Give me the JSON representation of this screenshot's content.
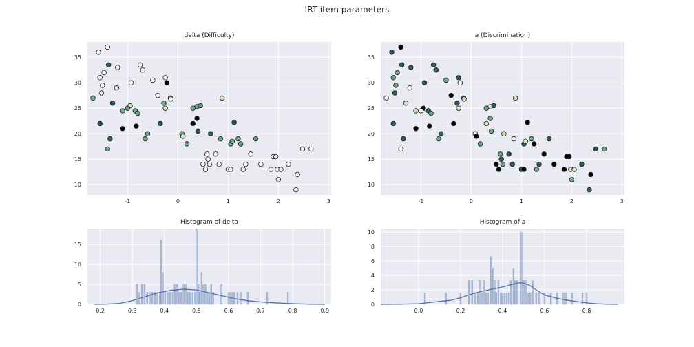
{
  "figure": {
    "title": "IRT item parameters"
  },
  "palette": [
    "#f7fbf5",
    "#cfe5c1",
    "#6aa889",
    "#2f5a60",
    "#08080c"
  ],
  "chart_data": [
    {
      "id": "scatter_delta",
      "type": "scatter",
      "title": "delta (Difficulty)",
      "xlim": [
        -1.8,
        3.05
      ],
      "ylim": [
        8,
        38
      ],
      "xticks": [
        -1,
        0,
        1,
        2,
        3
      ],
      "yticks": [
        10,
        15,
        20,
        25,
        30,
        35
      ],
      "grid": true,
      "points": [
        [
          -1.58,
          36,
          0
        ],
        [
          -1.4,
          37,
          0
        ],
        [
          -1.55,
          31,
          0
        ],
        [
          -1.5,
          29.5,
          0
        ],
        [
          -1.47,
          32,
          0
        ],
        [
          -1.52,
          28,
          0
        ],
        [
          -1.69,
          27,
          2
        ],
        [
          -1.38,
          33.5,
          3
        ],
        [
          -1.2,
          33,
          0
        ],
        [
          -1.22,
          29,
          1
        ],
        [
          -0.93,
          30,
          0
        ],
        [
          -0.75,
          33.5,
          0
        ],
        [
          -0.7,
          32.5,
          0
        ],
        [
          -1.3,
          26,
          3
        ],
        [
          -0.95,
          25.5,
          1
        ],
        [
          -1.0,
          25,
          2
        ],
        [
          -1.1,
          24.5,
          2
        ],
        [
          -0.85,
          24.5,
          2
        ],
        [
          -0.8,
          24,
          2
        ],
        [
          -1.55,
          22,
          3
        ],
        [
          -1.1,
          21,
          4
        ],
        [
          -0.83,
          21.5,
          4
        ],
        [
          -1.35,
          19,
          3
        ],
        [
          -1.4,
          17,
          2
        ],
        [
          -0.6,
          20,
          2
        ],
        [
          -0.65,
          19,
          2
        ],
        [
          -0.4,
          27.5,
          0
        ],
        [
          -0.25,
          31,
          0
        ],
        [
          -0.22,
          30,
          4
        ],
        [
          -0.15,
          27,
          0
        ],
        [
          -0.14,
          26.8,
          0
        ],
        [
          -0.28,
          26,
          2
        ],
        [
          -0.25,
          25,
          1
        ],
        [
          -0.35,
          22,
          3
        ],
        [
          -0.5,
          30.5,
          0
        ],
        [
          0.08,
          20,
          2
        ],
        [
          0.1,
          19.5,
          1
        ],
        [
          0.18,
          18,
          2
        ],
        [
          0.3,
          25,
          2
        ],
        [
          0.38,
          25.3,
          2
        ],
        [
          0.45,
          25.5,
          2
        ],
        [
          0.88,
          27,
          1
        ],
        [
          0.3,
          22,
          4
        ],
        [
          0.38,
          23,
          4
        ],
        [
          0.4,
          20.5,
          3
        ],
        [
          0.65,
          20,
          3
        ],
        [
          0.85,
          19,
          2
        ],
        [
          1.05,
          18,
          2
        ],
        [
          1.08,
          18.5,
          2
        ],
        [
          1.12,
          22.2,
          3
        ],
        [
          1.2,
          19,
          2
        ],
        [
          1.25,
          18,
          2
        ],
        [
          1.55,
          19,
          2
        ],
        [
          0.5,
          14,
          0
        ],
        [
          0.55,
          13,
          0
        ],
        [
          0.58,
          16,
          0
        ],
        [
          0.6,
          15,
          0
        ],
        [
          0.63,
          14,
          0
        ],
        [
          0.75,
          16,
          0
        ],
        [
          0.82,
          14,
          0
        ],
        [
          1.0,
          13,
          0
        ],
        [
          1.05,
          13,
          0
        ],
        [
          1.3,
          13,
          0
        ],
        [
          1.35,
          14,
          0
        ],
        [
          1.45,
          16,
          0
        ],
        [
          1.65,
          14,
          0
        ],
        [
          1.85,
          13,
          0
        ],
        [
          1.9,
          15.5,
          0
        ],
        [
          1.95,
          15.5,
          0
        ],
        [
          1.98,
          13,
          0
        ],
        [
          2.0,
          11,
          0
        ],
        [
          2.05,
          13,
          0
        ],
        [
          2.2,
          14,
          0
        ],
        [
          2.38,
          12,
          0
        ],
        [
          2.35,
          9,
          0
        ],
        [
          2.48,
          17,
          0
        ],
        [
          2.65,
          17,
          0
        ]
      ]
    },
    {
      "id": "scatter_a",
      "type": "scatter",
      "title": "a (Discrimination)",
      "xlim": [
        -1.8,
        3.05
      ],
      "ylim": [
        8,
        38
      ],
      "xticks": [
        -1,
        0,
        1,
        2,
        3
      ],
      "yticks": [
        10,
        15,
        20,
        25,
        30,
        35
      ],
      "grid": true,
      "points": [
        [
          -1.58,
          36,
          3
        ],
        [
          -1.4,
          37,
          4
        ],
        [
          -1.55,
          31,
          2
        ],
        [
          -1.5,
          29.5,
          2
        ],
        [
          -1.47,
          32,
          2
        ],
        [
          -1.52,
          28,
          3
        ],
        [
          -1.69,
          27,
          0
        ],
        [
          -1.38,
          33.5,
          3
        ],
        [
          -1.2,
          33,
          3
        ],
        [
          -1.22,
          29,
          0
        ],
        [
          -0.93,
          30,
          3
        ],
        [
          -0.75,
          33.5,
          3
        ],
        [
          -0.7,
          32.5,
          3
        ],
        [
          -1.3,
          26,
          1
        ],
        [
          -0.95,
          25,
          4
        ],
        [
          -1.0,
          24.5,
          0
        ],
        [
          -1.1,
          24.5,
          1
        ],
        [
          -0.85,
          24.5,
          3
        ],
        [
          -0.8,
          24,
          2
        ],
        [
          -1.55,
          22,
          3
        ],
        [
          -1.1,
          21,
          4
        ],
        [
          -0.83,
          21.5,
          4
        ],
        [
          -1.35,
          19,
          3
        ],
        [
          -1.4,
          17,
          0
        ],
        [
          -0.6,
          20,
          3
        ],
        [
          -0.65,
          19,
          2
        ],
        [
          -0.4,
          27.5,
          4
        ],
        [
          -0.25,
          31,
          3
        ],
        [
          -0.22,
          30,
          0
        ],
        [
          -0.15,
          27,
          2
        ],
        [
          -0.14,
          26.8,
          1
        ],
        [
          -0.28,
          26,
          3
        ],
        [
          -0.25,
          25,
          1
        ],
        [
          -0.35,
          22,
          4
        ],
        [
          -0.5,
          30.5,
          2
        ],
        [
          0.08,
          20,
          0
        ],
        [
          0.1,
          19.5,
          4
        ],
        [
          0.18,
          18,
          2
        ],
        [
          0.3,
          25,
          2
        ],
        [
          0.38,
          25.3,
          0
        ],
        [
          0.45,
          25.5,
          3
        ],
        [
          0.88,
          27,
          1
        ],
        [
          0.3,
          22,
          1
        ],
        [
          0.38,
          23,
          2
        ],
        [
          0.4,
          20.5,
          2
        ],
        [
          0.65,
          20,
          1
        ],
        [
          0.85,
          19,
          0
        ],
        [
          1.05,
          18,
          3
        ],
        [
          1.08,
          18.5,
          1
        ],
        [
          1.12,
          22.2,
          4
        ],
        [
          1.2,
          19,
          2
        ],
        [
          1.25,
          18,
          4
        ],
        [
          1.55,
          19,
          3
        ],
        [
          0.5,
          14,
          4
        ],
        [
          0.55,
          13,
          4
        ],
        [
          0.58,
          16,
          2
        ],
        [
          0.6,
          15,
          3
        ],
        [
          0.63,
          14,
          2
        ],
        [
          0.75,
          16,
          3
        ],
        [
          0.82,
          14,
          3
        ],
        [
          1.0,
          13,
          3
        ],
        [
          1.05,
          13,
          4
        ],
        [
          1.3,
          13,
          2
        ],
        [
          1.35,
          14,
          3
        ],
        [
          1.45,
          16,
          4
        ],
        [
          1.65,
          14,
          4
        ],
        [
          1.85,
          13,
          4
        ],
        [
          1.9,
          15.5,
          4
        ],
        [
          1.95,
          15.5,
          4
        ],
        [
          1.98,
          13,
          1
        ],
        [
          2.0,
          11,
          2
        ],
        [
          2.05,
          13,
          1
        ],
        [
          2.2,
          14,
          3
        ],
        [
          2.38,
          12,
          4
        ],
        [
          2.35,
          9,
          3
        ],
        [
          2.48,
          17,
          3
        ],
        [
          2.65,
          17,
          2
        ]
      ]
    },
    {
      "id": "hist_delta",
      "type": "bar",
      "subtype": "histogram_kde",
      "title": "Histogram of delta",
      "xlim": [
        0.16,
        0.92
      ],
      "ylim": [
        0,
        19
      ],
      "xticks": [
        0.2,
        0.3,
        0.4,
        0.5,
        0.6,
        0.7,
        0.8,
        0.9
      ],
      "yticks": [
        0,
        5,
        10,
        15
      ],
      "bin_width": 0.004,
      "bins": [
        [
          0.314,
          5
        ],
        [
          0.322,
          3
        ],
        [
          0.33,
          5
        ],
        [
          0.338,
          5
        ],
        [
          0.346,
          3
        ],
        [
          0.354,
          3
        ],
        [
          0.362,
          3
        ],
        [
          0.37,
          3
        ],
        [
          0.378,
          3
        ],
        [
          0.386,
          3
        ],
        [
          0.39,
          16
        ],
        [
          0.395,
          8
        ],
        [
          0.402,
          3
        ],
        [
          0.41,
          3
        ],
        [
          0.418,
          3
        ],
        [
          0.426,
          3
        ],
        [
          0.432,
          5
        ],
        [
          0.44,
          5
        ],
        [
          0.446,
          3
        ],
        [
          0.452,
          3
        ],
        [
          0.46,
          5
        ],
        [
          0.468,
          5
        ],
        [
          0.474,
          3
        ],
        [
          0.48,
          3
        ],
        [
          0.488,
          3
        ],
        [
          0.496,
          3
        ],
        [
          0.5,
          19
        ],
        [
          0.506,
          5
        ],
        [
          0.51,
          3
        ],
        [
          0.516,
          8
        ],
        [
          0.522,
          5
        ],
        [
          0.528,
          5
        ],
        [
          0.534,
          3
        ],
        [
          0.54,
          3
        ],
        [
          0.546,
          5
        ],
        [
          0.552,
          3
        ],
        [
          0.578,
          5
        ],
        [
          0.6,
          3
        ],
        [
          0.606,
          3
        ],
        [
          0.612,
          3
        ],
        [
          0.618,
          3
        ],
        [
          0.628,
          3
        ],
        [
          0.64,
          3
        ],
        [
          0.66,
          3
        ],
        [
          0.72,
          3
        ],
        [
          0.785,
          3
        ]
      ],
      "kde": [
        [
          0.18,
          0
        ],
        [
          0.22,
          0.05
        ],
        [
          0.26,
          0.25
        ],
        [
          0.3,
          0.9
        ],
        [
          0.34,
          1.9
        ],
        [
          0.38,
          2.9
        ],
        [
          0.42,
          3.5
        ],
        [
          0.46,
          3.8
        ],
        [
          0.5,
          3.6
        ],
        [
          0.54,
          2.9
        ],
        [
          0.58,
          2.1
        ],
        [
          0.62,
          1.4
        ],
        [
          0.66,
          0.9
        ],
        [
          0.7,
          0.6
        ],
        [
          0.74,
          0.4
        ],
        [
          0.78,
          0.25
        ],
        [
          0.82,
          0.12
        ],
        [
          0.86,
          0.04
        ],
        [
          0.9,
          0
        ]
      ]
    },
    {
      "id": "hist_a",
      "type": "bar",
      "subtype": "histogram_kde",
      "title": "Histogram of a",
      "xlim": [
        -0.18,
        0.98
      ],
      "ylim": [
        0,
        10.5
      ],
      "xticks": [
        0.0,
        0.2,
        0.4,
        0.6,
        0.8
      ],
      "yticks": [
        0,
        2,
        4,
        6,
        8,
        10
      ],
      "bin_width": 0.006,
      "bins": [
        [
          0.03,
          1.6
        ],
        [
          0.13,
          1.6
        ],
        [
          0.2,
          1.6
        ],
        [
          0.24,
          3.3
        ],
        [
          0.255,
          3.3
        ],
        [
          0.27,
          1.6
        ],
        [
          0.282,
          1.6
        ],
        [
          0.29,
          3.3
        ],
        [
          0.3,
          1.6
        ],
        [
          0.31,
          3.3
        ],
        [
          0.322,
          1.6
        ],
        [
          0.33,
          1.6
        ],
        [
          0.345,
          6.6
        ],
        [
          0.355,
          5
        ],
        [
          0.362,
          3.3
        ],
        [
          0.37,
          1.6
        ],
        [
          0.38,
          3.3
        ],
        [
          0.392,
          1.6
        ],
        [
          0.4,
          1.6
        ],
        [
          0.41,
          1.6
        ],
        [
          0.42,
          1.6
        ],
        [
          0.43,
          1.6
        ],
        [
          0.44,
          3.3
        ],
        [
          0.452,
          5
        ],
        [
          0.46,
          3.3
        ],
        [
          0.47,
          3.3
        ],
        [
          0.49,
          10
        ],
        [
          0.5,
          3.3
        ],
        [
          0.51,
          3.3
        ],
        [
          0.52,
          1.6
        ],
        [
          0.532,
          1.6
        ],
        [
          0.545,
          3.3
        ],
        [
          0.56,
          1.6
        ],
        [
          0.575,
          1.6
        ],
        [
          0.6,
          1.6
        ],
        [
          0.63,
          1.6
        ],
        [
          0.66,
          1.6
        ],
        [
          0.69,
          1.6
        ],
        [
          0.7,
          1.6
        ],
        [
          0.73,
          1.6
        ],
        [
          0.78,
          1.6
        ],
        [
          0.8,
          1.6
        ]
      ],
      "kde": [
        [
          -0.18,
          0
        ],
        [
          -0.1,
          0.02
        ],
        [
          0.0,
          0.08
        ],
        [
          0.05,
          0.25
        ],
        [
          0.1,
          0.4
        ],
        [
          0.15,
          0.55
        ],
        [
          0.2,
          0.9
        ],
        [
          0.25,
          1.4
        ],
        [
          0.3,
          1.8
        ],
        [
          0.35,
          2.1
        ],
        [
          0.4,
          2.4
        ],
        [
          0.45,
          2.8
        ],
        [
          0.48,
          3.0
        ],
        [
          0.5,
          2.95
        ],
        [
          0.53,
          2.6
        ],
        [
          0.57,
          1.8
        ],
        [
          0.6,
          1.3
        ],
        [
          0.65,
          0.9
        ],
        [
          0.7,
          0.6
        ],
        [
          0.75,
          0.4
        ],
        [
          0.8,
          0.2
        ],
        [
          0.85,
          0.08
        ],
        [
          0.9,
          0.02
        ],
        [
          0.95,
          0
        ]
      ]
    }
  ]
}
